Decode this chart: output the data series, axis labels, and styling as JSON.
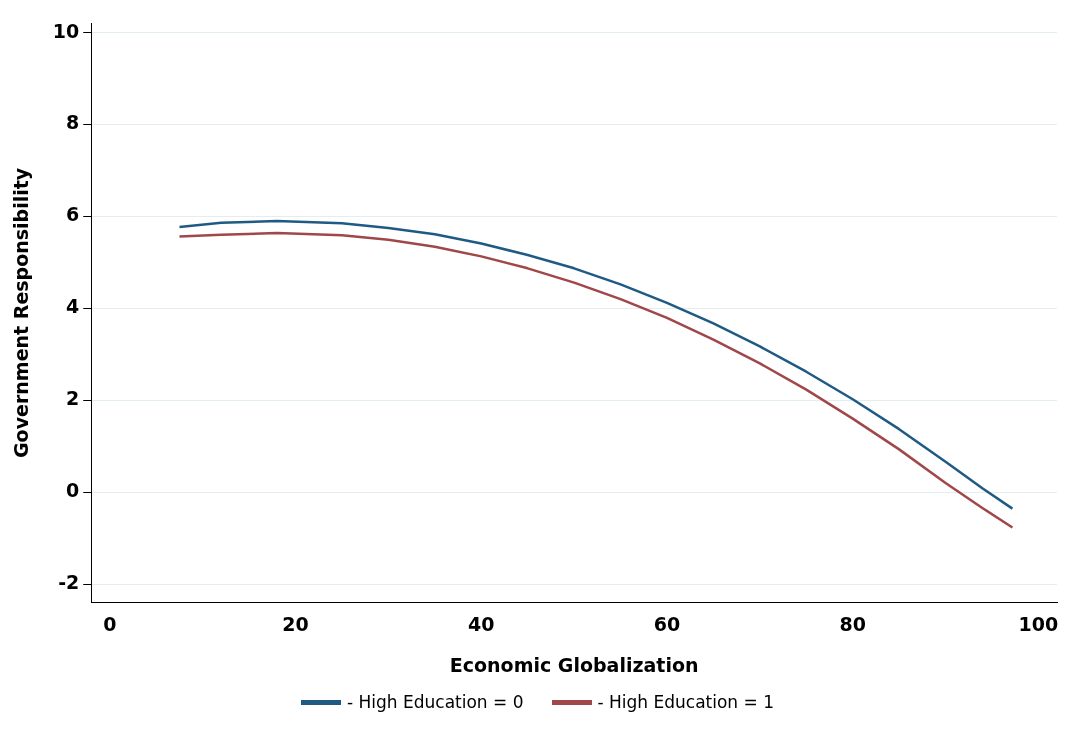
{
  "chart_data": {
    "type": "line",
    "xlabel": "Economic Globalization",
    "ylabel": "Government Responsibility",
    "xlim": [
      -2,
      102
    ],
    "xticks": [
      0,
      20,
      40,
      60,
      80,
      100
    ],
    "ylim": [
      -2.4,
      10.2
    ],
    "yticks": [
      -2,
      0,
      2,
      4,
      6,
      8,
      10
    ],
    "grid": "y",
    "legend": "bottom",
    "marker": "none",
    "line_style": "solid",
    "series": [
      {
        "name": "- High Education = 0",
        "color": "#1f5a84",
        "x": [
          7.5,
          12,
          18,
          25,
          30,
          35,
          40,
          45,
          50,
          55,
          60,
          65,
          70,
          75,
          80,
          85,
          90,
          94,
          97.2
        ],
        "values": [
          5.77,
          5.86,
          5.9,
          5.85,
          5.75,
          5.61,
          5.41,
          5.16,
          4.87,
          4.52,
          4.12,
          3.67,
          3.17,
          2.62,
          2.02,
          1.37,
          0.66,
          0.08,
          -0.36
        ]
      },
      {
        "name": "- High Education = 1",
        "color": "#a0474a",
        "x": [
          7.5,
          12,
          18,
          25,
          30,
          35,
          40,
          45,
          50,
          55,
          60,
          65,
          70,
          75,
          80,
          85,
          90,
          94,
          97.2
        ],
        "values": [
          5.56,
          5.6,
          5.64,
          5.59,
          5.49,
          5.34,
          5.13,
          4.87,
          4.56,
          4.2,
          3.79,
          3.32,
          2.8,
          2.23,
          1.6,
          0.93,
          0.2,
          -0.35,
          -0.77
        ]
      }
    ]
  }
}
